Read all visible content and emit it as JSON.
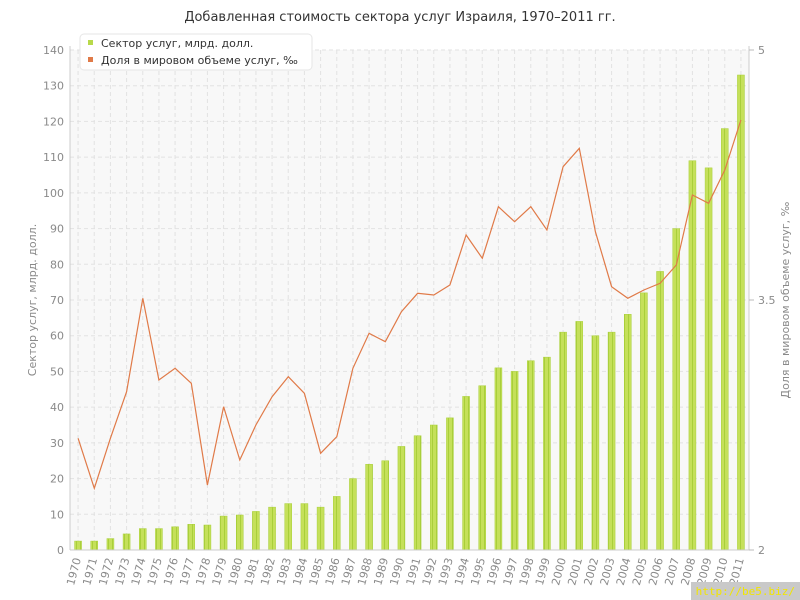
{
  "chart_data": {
    "type": "bar",
    "title": "Добавленная стоимость сектора услуг Израиля, 1970–2011 гг.",
    "ylabel": "Сектор услуг, млрд. долл.",
    "y2label": "Доля в мировом объеме услуг, ‰",
    "ylim": [
      0,
      140
    ],
    "y2lim": [
      2,
      5
    ],
    "yticks": [
      0,
      10,
      20,
      30,
      40,
      50,
      60,
      70,
      80,
      90,
      100,
      110,
      120,
      130,
      140
    ],
    "y2ticks": [
      "2",
      "3.5",
      "5"
    ],
    "grid": true,
    "legend": "top-left",
    "categories": [
      "1970",
      "1971",
      "1972",
      "1973",
      "1974",
      "1975",
      "1976",
      "1977",
      "1978",
      "1979",
      "1980",
      "1981",
      "1982",
      "1983",
      "1984",
      "1985",
      "1986",
      "1987",
      "1988",
      "1989",
      "1990",
      "1991",
      "1992",
      "1993",
      "1994",
      "1995",
      "1996",
      "1997",
      "1998",
      "1999",
      "2000",
      "2001",
      "2002",
      "2003",
      "2004",
      "2005",
      "2006",
      "2007",
      "2008",
      "2009",
      "2010",
      "2011"
    ],
    "series": [
      {
        "name": "Сектор услуг, млрд. долл.",
        "type": "bar",
        "axis": "left",
        "color": "#b8d94a",
        "values": [
          2.5,
          2.5,
          3.2,
          4.5,
          6,
          6,
          6.5,
          7.2,
          7,
          9.5,
          9.8,
          10.8,
          12,
          13,
          13,
          12,
          15,
          20,
          24,
          25,
          29,
          32,
          35,
          37,
          43,
          46,
          51,
          50,
          53,
          54,
          61,
          64,
          60,
          61,
          66,
          72,
          78,
          90,
          109,
          107,
          118,
          133
        ]
      },
      {
        "name": "Доля в мировом объеме услуг, ‰",
        "type": "line",
        "axis": "right",
        "color": "#e07a48",
        "values": [
          2.67,
          2.37,
          2.67,
          2.95,
          3.51,
          3.02,
          3.09,
          3.0,
          2.39,
          2.86,
          2.54,
          2.75,
          2.92,
          3.04,
          2.94,
          2.58,
          2.68,
          3.09,
          3.3,
          3.25,
          3.43,
          3.54,
          3.53,
          3.59,
          3.89,
          3.75,
          4.06,
          3.97,
          4.06,
          3.92,
          4.3,
          4.41,
          3.91,
          3.58,
          3.51,
          3.56,
          3.6,
          3.71,
          4.13,
          4.08,
          4.28,
          4.58
        ]
      }
    ]
  },
  "colors": {
    "bar_fill": "#c5e05a",
    "bar_stripe": "#9dc22c",
    "line": "#e07a48",
    "grid": "#e2e2e2",
    "plot_bg": "#f7f7f7",
    "axis_text": "#8a8a8a"
  },
  "watermark": "http://be5.biz/"
}
